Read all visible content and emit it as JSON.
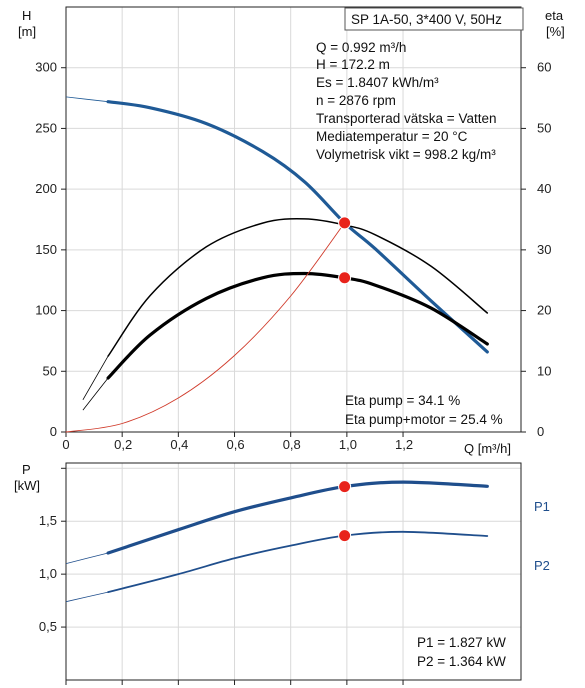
{
  "chart_data": [
    {
      "type": "line",
      "title": "SP 1A-50, 3*400 V, 50Hz",
      "xlabel": "Q [m³/h]",
      "ylabel": "H\n[m]",
      "ylabel_lines": [
        "H",
        "[m]"
      ],
      "y2label_lines": [
        "eta",
        "[%]"
      ],
      "xlim": [
        0,
        1.62
      ],
      "ylim": [
        0,
        350
      ],
      "y2lim": [
        0,
        70
      ],
      "x_ticks": [
        "0",
        "0,2",
        "0,4",
        "0,6",
        "0,8",
        "1,0",
        "1,2"
      ],
      "x_tick_values": [
        0,
        0.2,
        0.4,
        0.6,
        0.8,
        1.0,
        1.2
      ],
      "y_ticks": [
        0,
        50,
        100,
        150,
        200,
        250,
        300
      ],
      "y2_ticks": [
        0,
        10,
        20,
        30,
        40,
        50,
        60
      ],
      "grid": true,
      "series": [
        {
          "role": "H",
          "color": "#1f5a96",
          "ext_x": [
            0.0,
            0.15
          ],
          "ext_y": [
            276,
            272
          ],
          "x": [
            0.15,
            0.3,
            0.5,
            0.7,
            0.85,
            0.992,
            1.1,
            1.3,
            1.5
          ],
          "y": [
            272,
            267,
            254,
            231,
            206,
            172.2,
            151,
            108,
            66
          ]
        },
        {
          "role": "eta_pump",
          "axis": "right",
          "color": "#000000",
          "ext_x": [
            0.06,
            0.15
          ],
          "ext_y": [
            5.3,
            12.5
          ],
          "x": [
            0.15,
            0.3,
            0.5,
            0.7,
            0.85,
            0.992,
            1.1,
            1.3,
            1.5
          ],
          "y": [
            12.5,
            22.5,
            30.5,
            34.4,
            35.1,
            34.1,
            32.5,
            27.3,
            19.6
          ]
        },
        {
          "role": "eta_pump_motor",
          "axis": "right",
          "color": "#000000",
          "ext_x": [
            0.06,
            0.15
          ],
          "ext_y": [
            3.6,
            8.9
          ],
          "x": [
            0.15,
            0.3,
            0.5,
            0.7,
            0.85,
            0.992,
            1.1,
            1.3,
            1.5
          ],
          "y": [
            8.9,
            16.0,
            22.0,
            25.4,
            26.1,
            25.4,
            24.2,
            20.4,
            14.5
          ]
        },
        {
          "role": "system_curve",
          "color": "#d03a2a",
          "x": [
            0.0,
            0.2,
            0.4,
            0.6,
            0.8,
            0.992
          ],
          "y": [
            0,
            7,
            28,
            63,
            112,
            172.2
          ]
        }
      ],
      "operating_points": [
        {
          "x": 0.992,
          "y": 172.2
        },
        {
          "x": 0.992,
          "y2": 25.4
        }
      ],
      "annotations": [
        "Q = 0.992 m³/h",
        "H = 172.2 m",
        "Es = 1.8407 kWh/m³",
        "n = 2876 rpm",
        "Transporterad vätska = Vatten",
        "Mediatemperatur = 20 °C",
        "Volymetrisk vikt = 998.2 kg/m³"
      ],
      "eta_notes": [
        "Eta pump = 34.1 %",
        "Eta pump+motor = 25.4 %"
      ]
    },
    {
      "type": "line",
      "ylabel_lines": [
        "P",
        "[kW]"
      ],
      "xlim": [
        0,
        1.62
      ],
      "ylim": [
        0,
        2.05
      ],
      "y_ticks": [
        "0,5",
        "1,0",
        "1,5"
      ],
      "y_tick_values": [
        0.5,
        1.0,
        1.5
      ],
      "grid": true,
      "series": [
        {
          "name": "P1",
          "color": "#1f4e8c",
          "ext_x": [
            0.0,
            0.15
          ],
          "ext_y": [
            1.1,
            1.2
          ],
          "x": [
            0.15,
            0.4,
            0.6,
            0.8,
            0.992,
            1.2,
            1.5
          ],
          "y": [
            1.2,
            1.42,
            1.59,
            1.72,
            1.827,
            1.87,
            1.83
          ]
        },
        {
          "name": "P2",
          "color": "#1f4e8c",
          "ext_x": [
            0.0,
            0.15
          ],
          "ext_y": [
            0.74,
            0.83
          ],
          "x": [
            0.15,
            0.4,
            0.6,
            0.8,
            0.992,
            1.2,
            1.5
          ],
          "y": [
            0.83,
            1.0,
            1.15,
            1.27,
            1.364,
            1.4,
            1.36
          ]
        }
      ],
      "operating_points": [
        {
          "x": 0.992,
          "y": 1.827
        },
        {
          "x": 0.992,
          "y": 1.364
        }
      ],
      "annotations": [
        "P1 = 1.827 kW",
        "P2 = 1.364 kW"
      ]
    }
  ]
}
